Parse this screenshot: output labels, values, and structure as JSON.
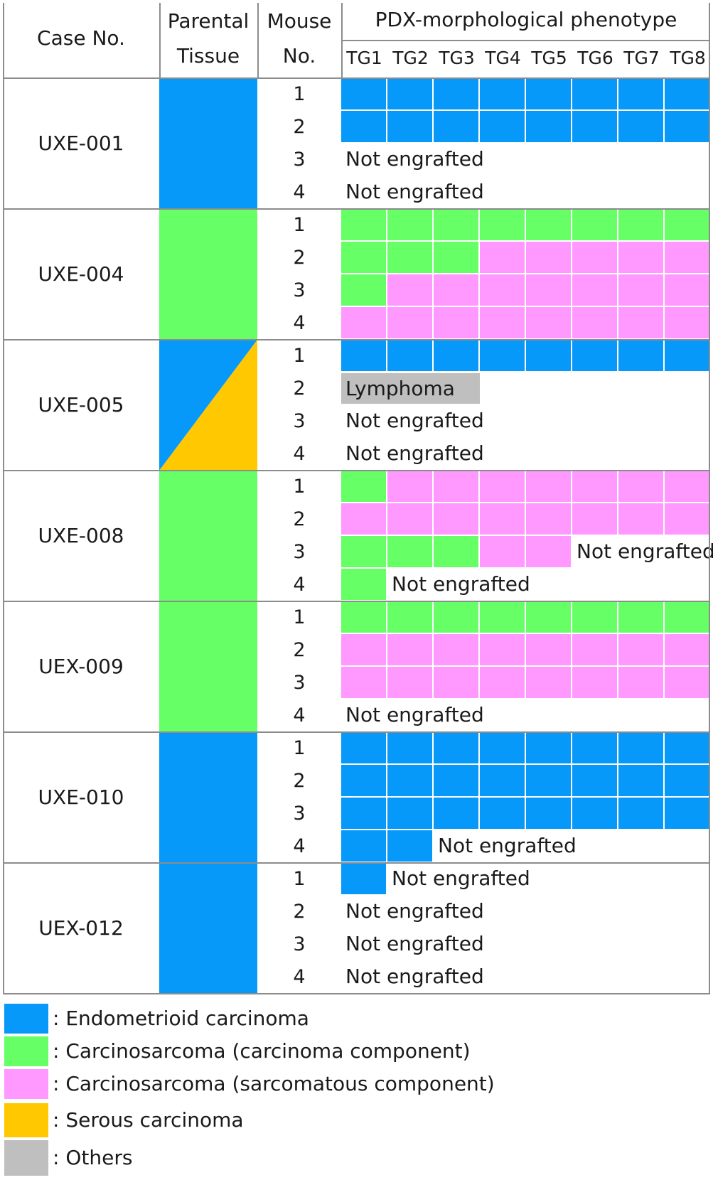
{
  "colors": {
    "E": "#0799f9",
    "C": "#66ff66",
    "S": "#ff99ff",
    "Se": "#ffc800",
    "O": "#bfbfbf",
    "border": "#8c8c8c"
  },
  "header": {
    "case_no": "Case No.",
    "parental_line1": "Parental",
    "parental_line2": "Tissue",
    "mouse_line1": "Mouse",
    "mouse_line2": "No.",
    "phenotype": "PDX-morphological phenotype",
    "tg": [
      "TG1",
      "TG2",
      "TG3",
      "TG4",
      "TG5",
      "TG6",
      "TG7",
      "TG8"
    ]
  },
  "chart_data": {
    "type": "table",
    "title": "",
    "columns": [
      "Case No.",
      "Parental Tissue",
      "Mouse No.",
      "TG1",
      "TG2",
      "TG3",
      "TG4",
      "TG5",
      "TG6",
      "TG7",
      "TG8"
    ],
    "codes": {
      "E": "Endometrioid carcinoma",
      "C": "Carcinosarcoma (carcinoma component)",
      "S": "Carcinosarcoma (sarcomatous component)",
      "Se": "Serous carcinoma",
      "O": "Others"
    },
    "cases": [
      {
        "id": "UXE-001",
        "parental": [
          "E"
        ],
        "mice": [
          {
            "no": "1",
            "tg": [
              "E",
              "E",
              "E",
              "E",
              "E",
              "E",
              "E",
              "E"
            ],
            "note": ""
          },
          {
            "no": "2",
            "tg": [
              "E",
              "E",
              "E",
              "E",
              "E",
              "E",
              "E",
              "E"
            ],
            "note": ""
          },
          {
            "no": "3",
            "tg": [],
            "note": "Not engrafted"
          },
          {
            "no": "4",
            "tg": [],
            "note": "Not engrafted"
          }
        ]
      },
      {
        "id": "UXE-004",
        "parental": [
          "C"
        ],
        "mice": [
          {
            "no": "1",
            "tg": [
              "C",
              "C",
              "C",
              "C",
              "C",
              "C",
              "C",
              "C"
            ],
            "note": ""
          },
          {
            "no": "2",
            "tg": [
              "C",
              "C",
              "C",
              "S",
              "S",
              "S",
              "S",
              "S"
            ],
            "note": ""
          },
          {
            "no": "3",
            "tg": [
              "C",
              "S",
              "S",
              "S",
              "S",
              "S",
              "S",
              "S"
            ],
            "note": ""
          },
          {
            "no": "4",
            "tg": [
              "S",
              "S",
              "S",
              "S",
              "S",
              "S",
              "S",
              "S"
            ],
            "note": ""
          }
        ]
      },
      {
        "id": "UXE-005",
        "parental": [
          "E",
          "Se"
        ],
        "mice": [
          {
            "no": "1",
            "tg": [
              "E",
              "E",
              "E",
              "E",
              "E",
              "E",
              "E",
              "E"
            ],
            "note": ""
          },
          {
            "no": "2",
            "tg": [],
            "note": "Lymphoma"
          },
          {
            "no": "3",
            "tg": [],
            "note": "Not engrafted"
          },
          {
            "no": "4",
            "tg": [],
            "note": "Not engrafted"
          }
        ]
      },
      {
        "id": "UXE-008",
        "parental": [
          "C"
        ],
        "mice": [
          {
            "no": "1",
            "tg": [
              "C",
              "S",
              "S",
              "S",
              "S",
              "S",
              "S",
              "S"
            ],
            "note": ""
          },
          {
            "no": "2",
            "tg": [
              "S",
              "S",
              "S",
              "S",
              "S",
              "S",
              "S",
              "S"
            ],
            "note": ""
          },
          {
            "no": "3",
            "tg": [
              "C",
              "C",
              "C",
              "S",
              "S"
            ],
            "note": "Not engrafted"
          },
          {
            "no": "4",
            "tg": [
              "C"
            ],
            "note": "Not engrafted"
          }
        ]
      },
      {
        "id": "UEX-009",
        "parental": [
          "C"
        ],
        "mice": [
          {
            "no": "1",
            "tg": [
              "C",
              "C",
              "C",
              "C",
              "C",
              "C",
              "C",
              "C"
            ],
            "note": ""
          },
          {
            "no": "2",
            "tg": [
              "S",
              "S",
              "S",
              "S",
              "S",
              "S",
              "S",
              "S"
            ],
            "note": ""
          },
          {
            "no": "3",
            "tg": [
              "S",
              "S",
              "S",
              "S",
              "S",
              "S",
              "S",
              "S"
            ],
            "note": ""
          },
          {
            "no": "4",
            "tg": [],
            "note": "Not engrafted"
          }
        ]
      },
      {
        "id": "UXE-010",
        "parental": [
          "E"
        ],
        "mice": [
          {
            "no": "1",
            "tg": [
              "E",
              "E",
              "E",
              "E",
              "E",
              "E",
              "E",
              "E"
            ],
            "note": ""
          },
          {
            "no": "2",
            "tg": [
              "E",
              "E",
              "E",
              "E",
              "E",
              "E",
              "E",
              "E"
            ],
            "note": ""
          },
          {
            "no": "3",
            "tg": [
              "E",
              "E",
              "E",
              "E",
              "E",
              "E",
              "E",
              "E"
            ],
            "note": ""
          },
          {
            "no": "4",
            "tg": [
              "E",
              "E"
            ],
            "note": "Not engrafted"
          }
        ]
      },
      {
        "id": "UEX-012",
        "parental": [
          "E"
        ],
        "mice": [
          {
            "no": "1",
            "tg": [
              "E"
            ],
            "note": "Not engrafted"
          },
          {
            "no": "2",
            "tg": [],
            "note": "Not engrafted"
          },
          {
            "no": "3",
            "tg": [],
            "note": "Not engrafted"
          },
          {
            "no": "4",
            "tg": [],
            "note": "Not engrafted"
          }
        ]
      }
    ],
    "legend": [
      {
        "code": "E",
        "label": ": Endometrioid carcinoma"
      },
      {
        "code": "C",
        "label": ": Carcinosarcoma (carcinoma component)"
      },
      {
        "code": "S",
        "label": ": Carcinosarcoma (sarcomatous component)"
      },
      {
        "code": "Se",
        "label": ": Serous carcinoma"
      },
      {
        "code": "O",
        "label": ": Others"
      }
    ]
  }
}
